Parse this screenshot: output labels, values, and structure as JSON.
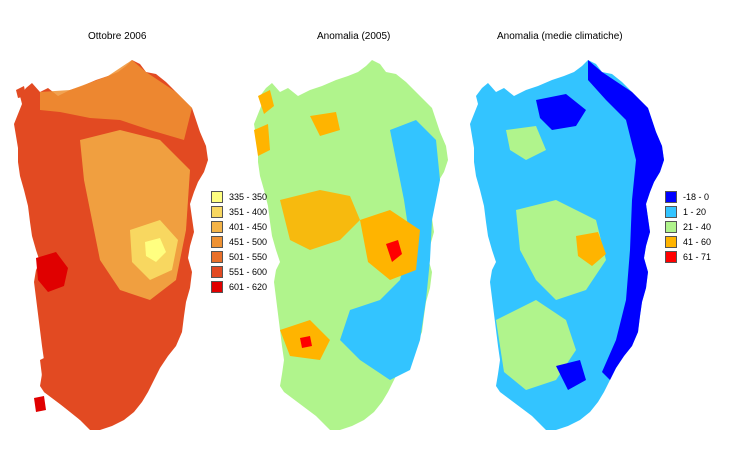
{
  "panels": [
    {
      "title": "Ottobre 2006"
    },
    {
      "title": "Anomalia (2005)"
    },
    {
      "title": "Anomalia (medie climatiche)"
    }
  ],
  "legend_totals": {
    "classes": [
      {
        "label": "335 - 350",
        "color": "#ffff80"
      },
      {
        "label": "351 - 400",
        "color": "#f8d760"
      },
      {
        "label": "401 - 450",
        "color": "#f4b448"
      },
      {
        "label": "451 - 500",
        "color": "#ef9233"
      },
      {
        "label": "501 - 550",
        "color": "#e9702a"
      },
      {
        "label": "551 - 600",
        "color": "#e24a22"
      },
      {
        "label": "601 - 620",
        "color": "#e00000"
      }
    ]
  },
  "legend_anomaly": {
    "classes": [
      {
        "label": "-18 - 0",
        "color": "#0000ff"
      },
      {
        "label": "1 - 20",
        "color": "#33c4ff"
      },
      {
        "label": "21 - 40",
        "color": "#b0f48c"
      },
      {
        "label": "41 - 60",
        "color": "#ffb400"
      },
      {
        "label": "61 - 71",
        "color": "#ff0000"
      }
    ]
  }
}
